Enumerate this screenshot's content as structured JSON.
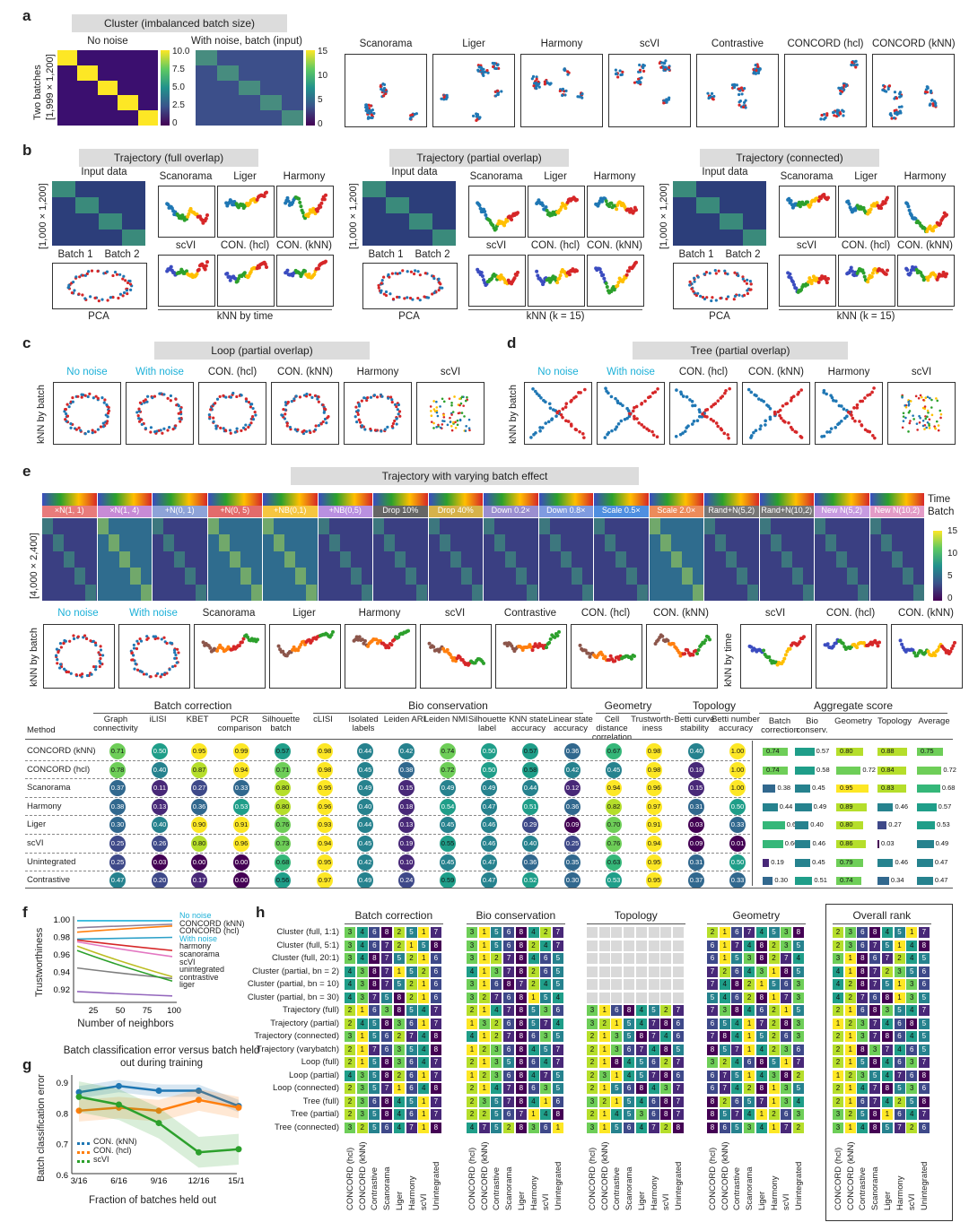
{
  "panel_a": {
    "letter": "a",
    "title": "Cluster (imbalanced batch size)",
    "heat_titles": [
      "No noise",
      "With noise, batch (input)"
    ],
    "ylabel": "Two batches\n[1,999 × 1,200]",
    "cbar1_ticks": [
      "10.0",
      "7.5",
      "5.0",
      "2.5",
      "0"
    ],
    "cbar2_ticks": [
      "15",
      "10",
      "5",
      "0"
    ],
    "methods": [
      "Scanorama",
      "Liger",
      "Harmony",
      "scVI",
      "Contrastive",
      "CONCORD (hcl)",
      "CONCORD (kNN)"
    ]
  },
  "panel_b": {
    "letter": "b",
    "groups": [
      {
        "title": "Trajectory (full overlap)",
        "input": "Input data",
        "batches": [
          "Batch 1",
          "Batch 2"
        ],
        "pca": "PCA",
        "top": [
          "Scanorama",
          "Liger",
          "Harmony"
        ],
        "bottom": [
          "scVI",
          "CON. (hcl)",
          "CON. (kNN)"
        ],
        "knn": "kNN by time"
      },
      {
        "title": "Trajectory (partial overlap)",
        "input": "Input data",
        "batches": [
          "Batch 1",
          "Batch 2"
        ],
        "pca": "PCA",
        "top": [
          "Scanorama",
          "Liger",
          "Harmony"
        ],
        "bottom": [
          "scVI",
          "CON. (hcl)",
          "CON. (kNN)"
        ],
        "knn": "kNN (k = 15)"
      },
      {
        "title": "Trajectory (connected)",
        "input": "Input data",
        "batches": [
          "Batch 1",
          "Batch 2"
        ],
        "pca": "PCA",
        "top": [
          "Scanorama",
          "Liger",
          "Harmony"
        ],
        "bottom": [
          "scVI",
          "CON. (hcl)",
          "CON. (kNN)"
        ],
        "knn": "kNN (k = 15)"
      }
    ],
    "ylabel": "[1,000 × 1,200]"
  },
  "panel_c": {
    "letter": "c",
    "title": "Loop (partial overlap)",
    "ylabel": "kNN by batch",
    "labels": [
      "No noise",
      "With noise",
      "CON. (hcl)",
      "CON. (kNN)",
      "Harmony",
      "scVI"
    ]
  },
  "panel_d": {
    "letter": "d",
    "title": "Tree (partial overlap)",
    "ylabel": "kNN by batch",
    "labels": [
      "No noise",
      "With noise",
      "CON. (hcl)",
      "CON. (kNN)",
      "Harmony",
      "scVI"
    ]
  },
  "panel_e": {
    "letter": "e",
    "title": "Trajectory with varying batch effect",
    "strip_labels": [
      "×N(1, 1)",
      "×N(1, 4)",
      "+N(0, 1)",
      "+N(0, 5)",
      "+NB(0,1)",
      "+NB(0,5)",
      "Drop 10%",
      "Drop 40%",
      "Down 0.2×",
      "Down 0.8×",
      "Scale 0.5×",
      "Scale 2.0×",
      "Rand+N(5,2)",
      "Rand+N(10,2)",
      "New N(5,2)",
      "New N(10,2)"
    ],
    "strip_colors": [
      "#e87b7b",
      "#c78bd6",
      "#8ea3d8",
      "#e36b6b",
      "#f6c640",
      "#b990e0",
      "#666666",
      "#d6b24a",
      "#9b8fd0",
      "#7f9be0",
      "#4f8fe0",
      "#ec8b5a",
      "#777777",
      "#777777",
      "#c79be0",
      "#e39bc7"
    ],
    "legend": [
      "Time",
      "Batch"
    ],
    "ylabel": "[4,000 × 2,400]",
    "cbar_ticks": [
      "15",
      "10",
      "5",
      "0"
    ],
    "bottom_labels": [
      "No noise",
      "With noise",
      "Scanorama",
      "Liger",
      "Harmony",
      "scVI",
      "Contrastive",
      "CON. (hcl)",
      "CON. (kNN)"
    ],
    "time_labels": [
      "scVI",
      "CON. (hcl)",
      "CON. (kNN)"
    ],
    "ylabel_batch": "kNN by batch",
    "ylabel_time": "kNN by time"
  },
  "table": {
    "groups": [
      "Batch correction",
      "Bio conservation",
      "Geometry",
      "Topology",
      "Aggregate score"
    ],
    "method_header": "Method",
    "columns": [
      "Graph connectivity",
      "iLISI",
      "KBET",
      "PCR comparison",
      "Silhouette batch",
      "cLISI",
      "Isolated labels",
      "Leiden ARI",
      "Leiden NMI",
      "Silhouette label",
      "KNN state accuracy",
      "Linear state accuracy",
      "Cell distance correlation",
      "Trustworth-iness",
      "Betti curve stability",
      "Betti number accuracy"
    ],
    "agg_columns": [
      "Batch correction",
      "Bio conserv.",
      "Geometry",
      "Topology",
      "Average"
    ],
    "methods": [
      "CONCORD (kNN)",
      "CONCORD (hcl)",
      "Scanorama",
      "Harmony",
      "Liger",
      "scVI",
      "Unintegrated",
      "Contrastive"
    ],
    "values": [
      [
        "0.71",
        "0.50",
        "0.95",
        "0.99",
        "0.57",
        "0.98",
        "0.44",
        "0.42",
        "0.74",
        "0.50",
        "0.57",
        "0.36",
        "0.67",
        "0.98",
        "0.40",
        "1.00"
      ],
      [
        "0.78",
        "0.40",
        "0.87",
        "0.94",
        "0.71",
        "0.98",
        "0.45",
        "0.38",
        "0.72",
        "0.50",
        "0.58",
        "0.42",
        "0.45",
        "0.98",
        "0.18",
        "1.00"
      ],
      [
        "0.37",
        "0.11",
        "0.27",
        "0.33",
        "0.80",
        "0.95",
        "0.49",
        "0.15",
        "0.49",
        "0.49",
        "0.44",
        "0.12",
        "0.94",
        "0.96",
        "0.15",
        "1.00"
      ],
      [
        "0.38",
        "0.13",
        "0.36",
        "0.53",
        "0.80",
        "0.96",
        "0.40",
        "0.18",
        "0.54",
        "0.47",
        "0.51",
        "0.36",
        "0.82",
        "0.97",
        "0.31",
        "0.50"
      ],
      [
        "0.30",
        "0.40",
        "0.90",
        "0.91",
        "0.76",
        "0.93",
        "0.44",
        "0.13",
        "0.45",
        "0.46",
        "0.29",
        "0.09",
        "0.70",
        "0.91",
        "0.03",
        "0.33"
      ],
      [
        "0.25",
        "0.26",
        "0.80",
        "0.96",
        "0.73",
        "0.94",
        "0.45",
        "0.19",
        "0.55",
        "0.46",
        "0.40",
        "0.25",
        "0.76",
        "0.94",
        "0.09",
        "0.01"
      ],
      [
        "0.25",
        "0.03",
        "0.00",
        "0.00",
        "0.68",
        "0.95",
        "0.42",
        "0.10",
        "0.45",
        "0.47",
        "0.36",
        "0.35",
        "0.63",
        "0.95",
        "0.31",
        "0.50"
      ],
      [
        "0.47",
        "0.20",
        "0.17",
        "0.00",
        "0.56",
        "0.97",
        "0.49",
        "0.24",
        "0.59",
        "0.47",
        "0.52",
        "0.30",
        "0.53",
        "0.95",
        "0.37",
        "0.33"
      ]
    ],
    "agg_values": [
      [
        "0.74",
        "0.57",
        "0.80",
        "0.88",
        "0.75"
      ],
      [
        "0.74",
        "0.58",
        "0.72",
        "0.84",
        "0.72"
      ],
      [
        "0.38",
        "0.45",
        "0.95",
        "0.83",
        "0.68"
      ],
      [
        "0.44",
        "0.49",
        "0.89",
        "0.46",
        "0.57"
      ],
      [
        "0.65",
        "0.40",
        "0.80",
        "0.27",
        "0.53"
      ],
      [
        "0.60",
        "0.46",
        "0.86",
        "0.03",
        "0.49"
      ],
      [
        "0.19",
        "0.45",
        "0.79",
        "0.46",
        "0.47"
      ],
      [
        "0.30",
        "0.51",
        "0.74",
        "0.34",
        "0.47"
      ]
    ]
  },
  "panel_f": {
    "letter": "f",
    "ylabel": "Trustworthiness",
    "xlabel": "Number of neighbors",
    "yticks": [
      "1.00",
      "0.98",
      "0.96",
      "0.94",
      "0.92"
    ],
    "xticks": [
      "25",
      "50",
      "75",
      "100"
    ],
    "legend": [
      "No noise",
      "CONCORD (kNN)",
      "CONCORD (hcl)",
      "With noise",
      "harmony",
      "scanorama",
      "scVI",
      "unintegrated",
      "contrastive",
      "liger"
    ]
  },
  "panel_g": {
    "letter": "g",
    "title": "Batch classification error versus batch held out during training",
    "ylabel": "Batch classification error",
    "xlabel": "Fraction of batches held out",
    "xticks": [
      "3/16",
      "6/16",
      "9/16",
      "12/16",
      "15/16"
    ],
    "yticks": [
      "0.9",
      "0.8",
      "0.7",
      "0.6"
    ],
    "legend": [
      "CON. (kNN)",
      "CON. (hcl)",
      "scVI"
    ]
  },
  "panel_h": {
    "letter": "h",
    "groups": [
      "Batch correction",
      "Bio conservation",
      "Topology",
      "Geometry",
      "Overall rank"
    ],
    "rows": [
      "Cluster (full, 1:1)",
      "Cluster (full, 5:1)",
      "Cluster (full, 20:1)",
      "Cluster (partial, bn = 2)",
      "Cluster (partial, bn = 10)",
      "Cluster (partial, bn = 30)",
      "Trajectory (full)",
      "Trajectory (partial)",
      "Trajectory (connected)",
      "Trajectory (varybatch)",
      "Loop (full)",
      "Loop (partial)",
      "Loop (connected)",
      "Tree (full)",
      "Tree (partial)",
      "Tree (connected)"
    ],
    "cols": [
      "CONCORD (hcl)",
      "CONCORD (kNN)",
      "Contrastive",
      "Scanorama",
      "Liger",
      "Harmony",
      "scVI",
      "Unintegrated"
    ],
    "ranks": {
      "Batch correction": [
        [
          3,
          4,
          6,
          8,
          2,
          5,
          1,
          7
        ],
        [
          3,
          4,
          6,
          7,
          2,
          1,
          5,
          8
        ],
        [
          3,
          4,
          8,
          7,
          5,
          2,
          1,
          6
        ],
        [
          4,
          3,
          8,
          7,
          1,
          5,
          2,
          6
        ],
        [
          4,
          3,
          8,
          7,
          5,
          2,
          1,
          6
        ],
        [
          4,
          3,
          7,
          5,
          8,
          2,
          1,
          6
        ],
        [
          2,
          1,
          6,
          3,
          8,
          5,
          4,
          7
        ],
        [
          2,
          4,
          5,
          8,
          3,
          6,
          1,
          7
        ],
        [
          3,
          1,
          5,
          6,
          2,
          7,
          4,
          8
        ],
        [
          2,
          1,
          7,
          6,
          3,
          5,
          4,
          8
        ],
        [
          2,
          1,
          5,
          8,
          3,
          6,
          4,
          7
        ],
        [
          4,
          3,
          5,
          8,
          2,
          6,
          1,
          7
        ],
        [
          2,
          3,
          5,
          7,
          1,
          6,
          4,
          8
        ],
        [
          2,
          3,
          6,
          8,
          4,
          5,
          1,
          7
        ],
        [
          2,
          3,
          5,
          8,
          4,
          6,
          1,
          7
        ],
        [
          3,
          2,
          5,
          6,
          4,
          7,
          1,
          8
        ]
      ],
      "Bio conservation": [
        [
          3,
          1,
          5,
          6,
          8,
          4,
          2,
          7
        ],
        [
          3,
          1,
          5,
          6,
          8,
          2,
          4,
          7
        ],
        [
          3,
          1,
          2,
          7,
          8,
          4,
          6,
          5
        ],
        [
          4,
          1,
          3,
          7,
          8,
          2,
          6,
          5
        ],
        [
          3,
          1,
          6,
          8,
          7,
          2,
          4,
          5
        ],
        [
          3,
          2,
          7,
          6,
          8,
          1,
          5,
          4
        ],
        [
          2,
          1,
          4,
          7,
          8,
          5,
          3,
          6
        ],
        [
          1,
          3,
          2,
          6,
          8,
          5,
          7,
          4
        ],
        [
          4,
          1,
          2,
          7,
          8,
          6,
          3,
          5
        ],
        [
          1,
          2,
          3,
          6,
          8,
          4,
          5,
          7
        ],
        [
          2,
          1,
          3,
          5,
          8,
          6,
          4,
          7
        ],
        [
          1,
          2,
          3,
          6,
          8,
          4,
          7,
          5
        ],
        [
          2,
          1,
          4,
          7,
          8,
          6,
          3,
          5
        ],
        [
          2,
          3,
          5,
          7,
          8,
          4,
          1,
          6
        ],
        [
          2,
          2,
          5,
          6,
          7,
          1,
          4,
          8
        ],
        [
          4,
          7,
          5,
          2,
          8,
          3,
          6,
          1
        ]
      ],
      "Topology": [
        null,
        null,
        null,
        null,
        null,
        null,
        [
          3,
          1,
          6,
          8,
          4,
          5,
          2,
          7
        ],
        [
          3,
          2,
          1,
          5,
          4,
          7,
          8,
          6
        ],
        [
          2,
          1,
          3,
          5,
          8,
          7,
          4,
          6
        ],
        [
          2,
          1,
          3,
          6,
          7,
          4,
          8,
          5
        ],
        [
          2,
          1,
          8,
          4,
          5,
          6,
          2,
          7
        ],
        [
          2,
          3,
          1,
          4,
          5,
          7,
          8,
          6
        ],
        [
          2,
          1,
          5,
          6,
          8,
          4,
          3,
          7
        ],
        [
          3,
          2,
          1,
          5,
          4,
          6,
          8,
          7
        ],
        [
          2,
          1,
          4,
          5,
          3,
          6,
          8,
          7
        ],
        [
          3,
          1,
          5,
          6,
          4,
          7,
          2,
          8
        ]
      ],
      "Geometry": [
        [
          2,
          1,
          6,
          7,
          4,
          5,
          3,
          8
        ],
        [
          6,
          1,
          7,
          4,
          8,
          2,
          3,
          5
        ],
        [
          6,
          1,
          5,
          3,
          8,
          2,
          7,
          4
        ],
        [
          7,
          2,
          6,
          4,
          3,
          1,
          8,
          5
        ],
        [
          7,
          4,
          8,
          2,
          1,
          5,
          6,
          3
        ],
        [
          5,
          4,
          6,
          2,
          8,
          1,
          7,
          3
        ],
        [
          7,
          3,
          8,
          4,
          6,
          2,
          1,
          5
        ],
        [
          6,
          5,
          4,
          1,
          7,
          2,
          8,
          3
        ],
        [
          7,
          8,
          4,
          1,
          5,
          2,
          6,
          3
        ],
        [
          8,
          5,
          7,
          1,
          4,
          2,
          3,
          6
        ],
        [
          3,
          2,
          4,
          6,
          8,
          5,
          1,
          7
        ],
        [
          6,
          7,
          5,
          1,
          4,
          3,
          8,
          2
        ],
        [
          6,
          7,
          4,
          2,
          8,
          1,
          3,
          5
        ],
        [
          8,
          2,
          6,
          5,
          7,
          1,
          3,
          4
        ],
        [
          8,
          5,
          7,
          4,
          1,
          2,
          6,
          3
        ],
        [
          8,
          6,
          5,
          3,
          4,
          1,
          7,
          2
        ]
      ],
      "Overall rank": [
        [
          2,
          3,
          6,
          8,
          4,
          5,
          1,
          7
        ],
        [
          2,
          3,
          6,
          7,
          5,
          1,
          4,
          8
        ],
        [
          3,
          1,
          8,
          6,
          7,
          2,
          4,
          5
        ],
        [
          4,
          1,
          8,
          7,
          2,
          3,
          5,
          6
        ],
        [
          4,
          2,
          8,
          7,
          5,
          1,
          3,
          6
        ],
        [
          4,
          2,
          7,
          6,
          8,
          1,
          3,
          5
        ],
        [
          2,
          1,
          6,
          8,
          3,
          5,
          4,
          7
        ],
        [
          1,
          2,
          3,
          7,
          4,
          6,
          8,
          5
        ],
        [
          2,
          1,
          3,
          7,
          8,
          6,
          4,
          5
        ],
        [
          2,
          1,
          8,
          3,
          7,
          4,
          6,
          5
        ],
        [
          2,
          1,
          5,
          8,
          4,
          6,
          3,
          7
        ],
        [
          1,
          2,
          3,
          5,
          4,
          7,
          6,
          8
        ],
        [
          2,
          1,
          4,
          7,
          8,
          5,
          3,
          6
        ],
        [
          2,
          1,
          6,
          7,
          4,
          2,
          5,
          8
        ],
        [
          3,
          2,
          5,
          8,
          1,
          6,
          4,
          7
        ],
        [
          3,
          1,
          4,
          8,
          5,
          7,
          2,
          6
        ]
      ]
    }
  }
}
